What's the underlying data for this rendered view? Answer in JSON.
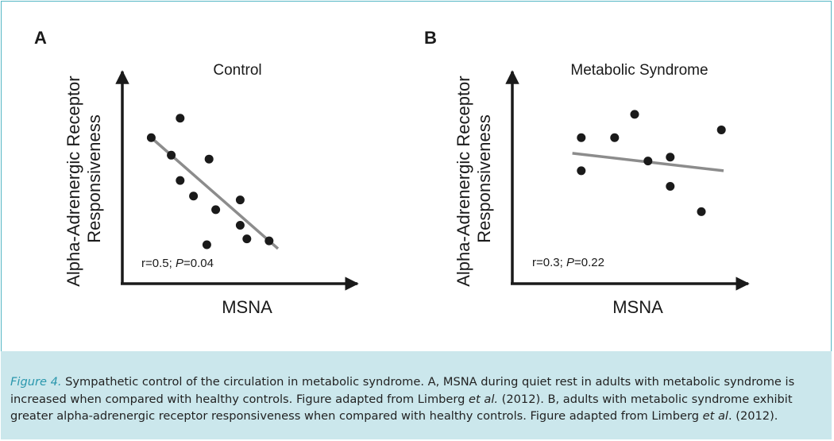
{
  "chart_data": [
    {
      "type": "scatter",
      "panel": "A",
      "title": "Control",
      "xlabel": "MSNA",
      "ylabel_lines": [
        "Alpha-Adrenergic Receptor",
        "Responsiveness"
      ],
      "stats": {
        "prefix": "r=0.5; ",
        "p_label": "P",
        "p_value": "=0.04"
      },
      "xlim": [
        0,
        10
      ],
      "ylim": [
        0,
        10
      ],
      "grid": false,
      "series": [
        {
          "points": [
            [
              1.3,
              7.5
            ],
            [
              2.6,
              8.5
            ],
            [
              2.2,
              6.6
            ],
            [
              2.6,
              5.3
            ],
            [
              3.2,
              4.5
            ],
            [
              3.9,
              6.4
            ],
            [
              4.2,
              3.8
            ],
            [
              5.3,
              4.3
            ],
            [
              5.3,
              3.0
            ],
            [
              5.6,
              2.3
            ],
            [
              6.6,
              2.2
            ],
            [
              3.8,
              2.0
            ]
          ]
        }
      ],
      "trendline": [
        [
          1.3,
          7.5
        ],
        [
          7.0,
          1.8
        ]
      ],
      "marker_color": "#1a1a1a",
      "trendline_color": "#8c8c8c"
    },
    {
      "type": "scatter",
      "panel": "B",
      "title": "Metabolic Syndrome",
      "xlabel": "MSNA",
      "ylabel_lines": [
        "Alpha-Adrenergic Receptor",
        "Responsiveness"
      ],
      "stats": {
        "prefix": "r=0.3; ",
        "p_label": "P",
        "p_value": "=0.22"
      },
      "xlim": [
        0,
        10
      ],
      "ylim": [
        0,
        10
      ],
      "grid": false,
      "series": [
        {
          "points": [
            [
              3.1,
              7.5
            ],
            [
              3.1,
              5.8
            ],
            [
              4.6,
              7.5
            ],
            [
              5.5,
              8.7
            ],
            [
              6.1,
              6.3
            ],
            [
              7.1,
              6.5
            ],
            [
              7.1,
              5.0
            ],
            [
              8.5,
              3.7
            ],
            [
              9.4,
              7.9
            ]
          ]
        }
      ],
      "trendline": [
        [
          2.7,
          6.7
        ],
        [
          9.5,
          5.8
        ]
      ],
      "marker_color": "#1a1a1a",
      "trendline_color": "#8c8c8c"
    }
  ],
  "caption": {
    "figure_label": "Figure 4.",
    "part1": " Sympathetic control of the circulation in metabolic syndrome. A, MSNA during quiet rest in adults with metabolic syndrome is increased when compared with healthy controls. Figure adapted from Limberg ",
    "etal1": "et al.",
    "part2": " (2012). B, adults with metabolic syndrome exhibit greater alpha-adrenergic receptor responsiveness when compared with healthy controls. Figure adapted from Limberg ",
    "etal2": "et al",
    "part3": ". (2012)."
  },
  "colors": {
    "border": "#55b7c4",
    "caption_background": "#cbe7ec",
    "caption_label": "#2a97ad"
  }
}
